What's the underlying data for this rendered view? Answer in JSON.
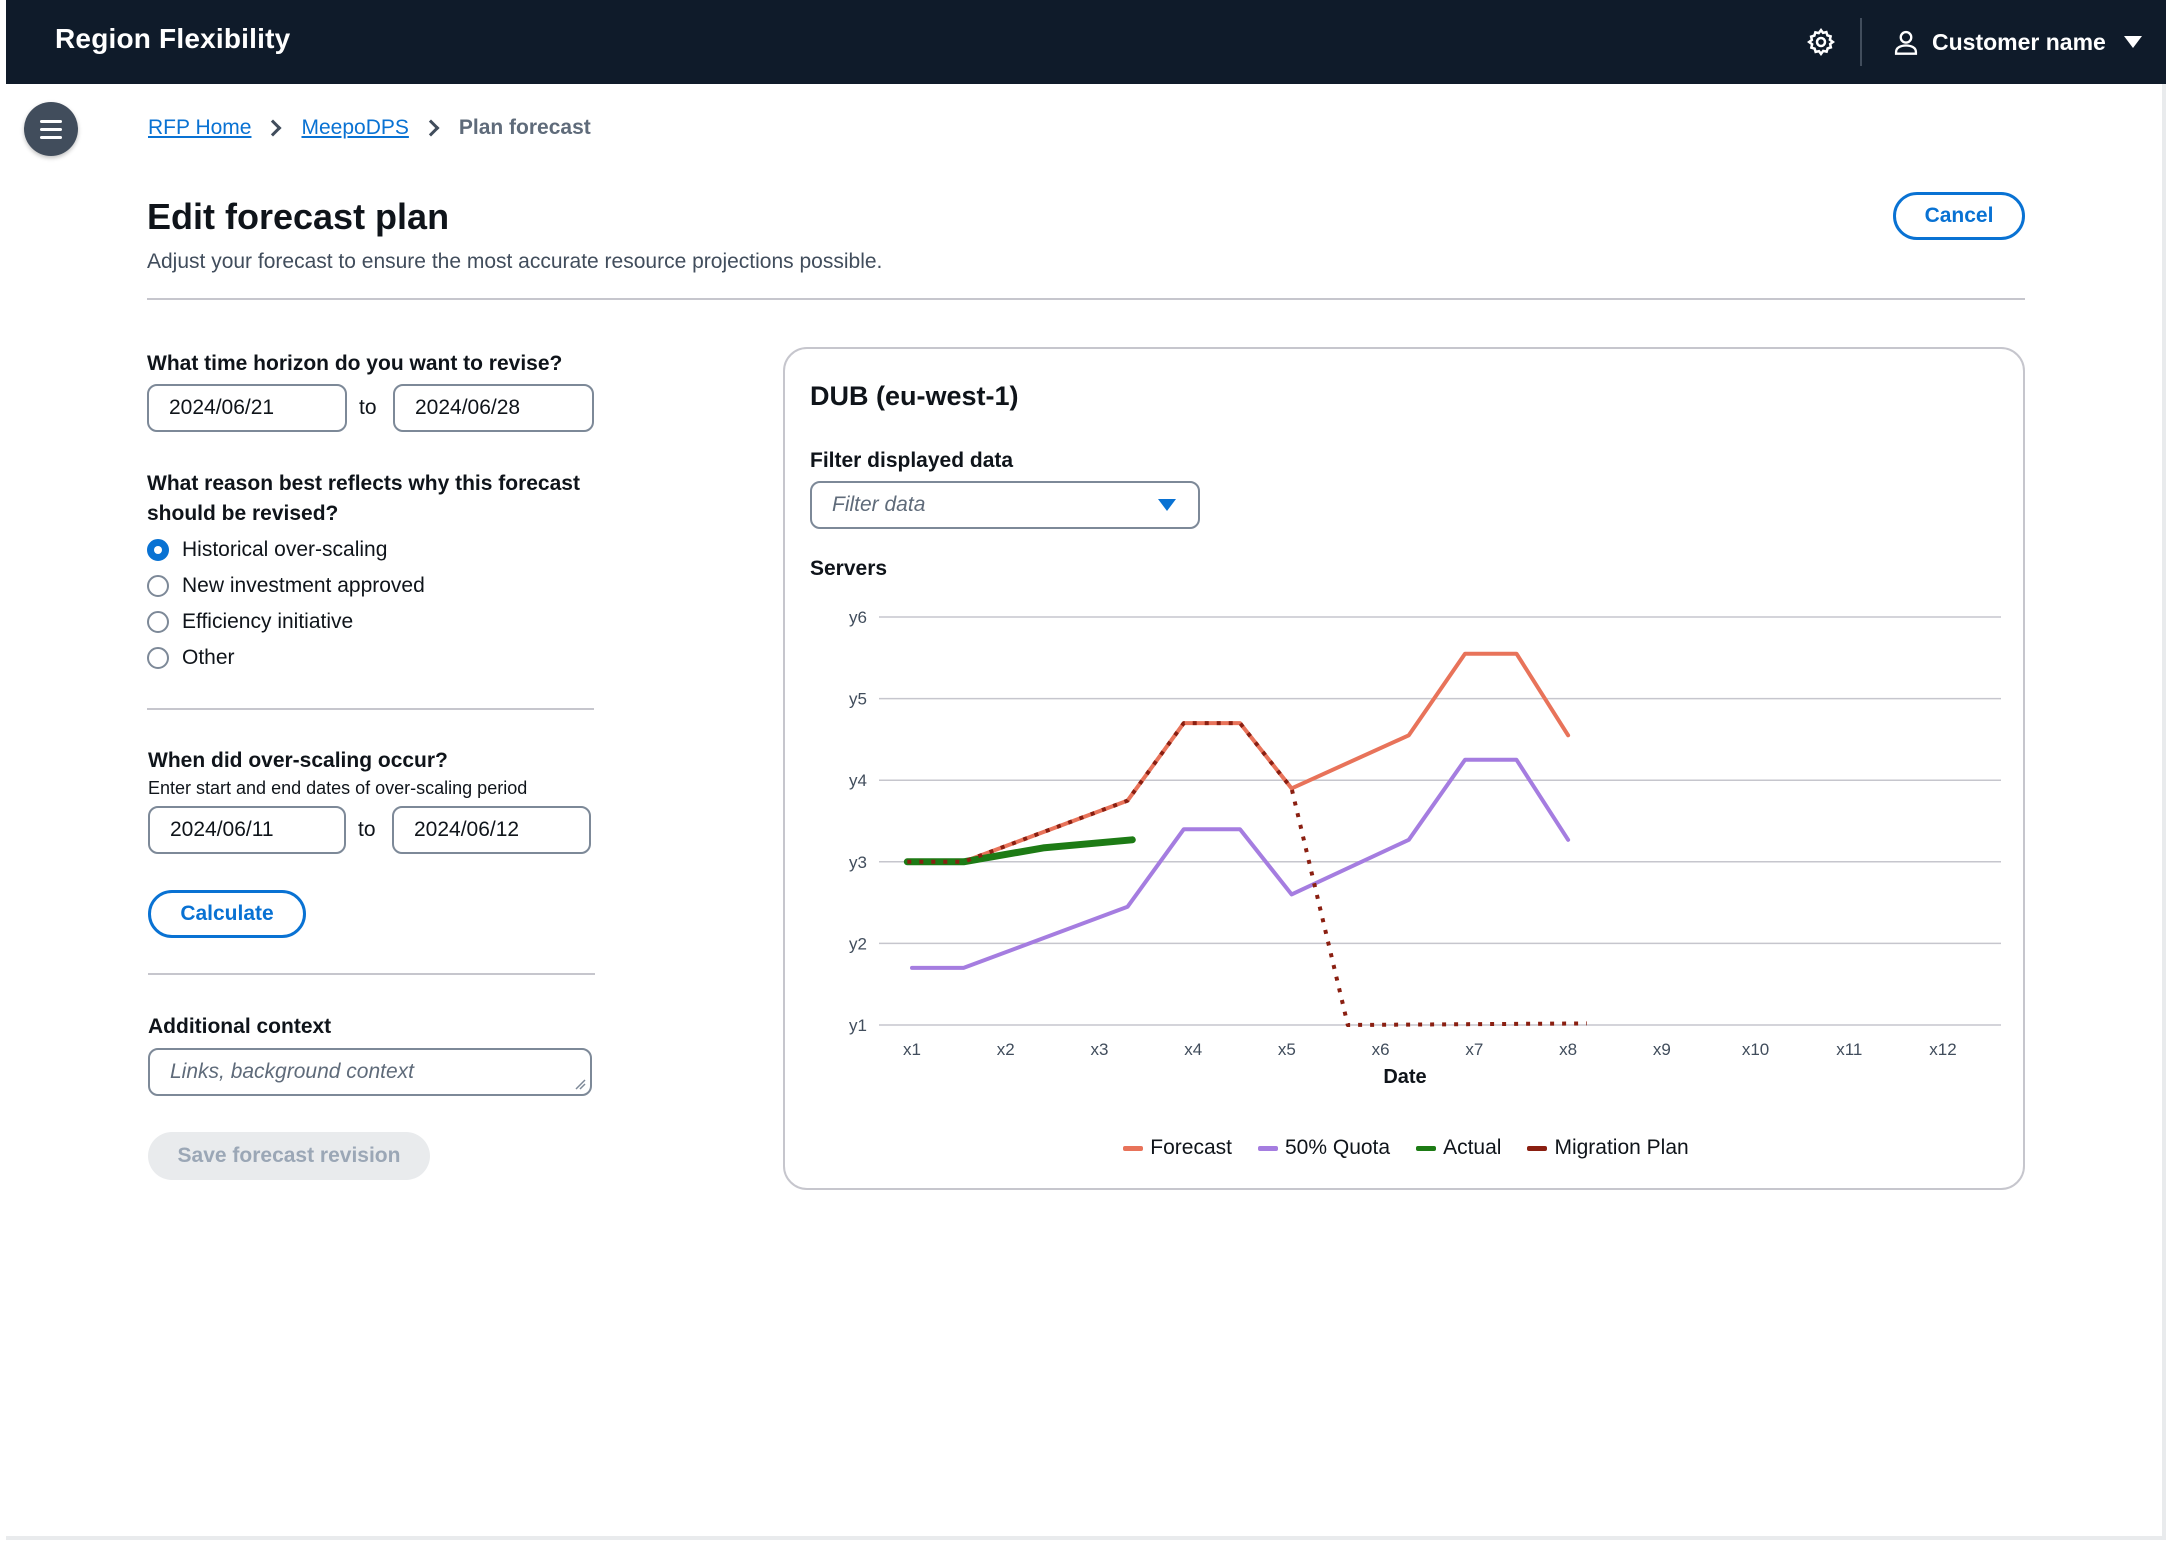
{
  "app": {
    "title": "Region Flexibility",
    "user_name": "Customer name"
  },
  "breadcrumb": {
    "home": "RFP Home",
    "service": "MeepoDPS",
    "current": "Plan forecast"
  },
  "header": {
    "title": "Edit forecast plan",
    "description": "Adjust your forecast to ensure the most accurate resource projections possible.",
    "cancel_label": "Cancel"
  },
  "form": {
    "horizon": {
      "label": "What time horizon do you want to revise?",
      "start": "2024/06/21",
      "to": "to",
      "end": "2024/06/28"
    },
    "reason": {
      "label_line1": "What reason best reflects why this forecast",
      "label_line2": "should be revised?",
      "options": [
        {
          "label": "Historical over-scaling",
          "checked": true
        },
        {
          "label": "New investment approved",
          "checked": false
        },
        {
          "label": "Efficiency initiative",
          "checked": false
        },
        {
          "label": "Other",
          "checked": false
        }
      ]
    },
    "overscaling": {
      "label": "When did over-scaling occur?",
      "hint": "Enter start and end dates of over-scaling period",
      "start": "2024/06/11",
      "to": "to",
      "end": "2024/06/12"
    },
    "calculate_label": "Calculate",
    "context": {
      "label": "Additional context",
      "placeholder": "Links, background context"
    },
    "save_label": "Save forecast revision"
  },
  "chart_panel": {
    "title": "DUB (eu-west-1)",
    "filter_label": "Filter displayed data",
    "filter_placeholder": "Filter data",
    "y_title": "Servers"
  },
  "chart_data": {
    "type": "line",
    "xlabel": "Date",
    "ylabel": "Servers",
    "x_ticks": [
      "x1",
      "x2",
      "x3",
      "x4",
      "x5",
      "x6",
      "x7",
      "x8",
      "x9",
      "x10",
      "x11",
      "x12"
    ],
    "y_ticks": [
      "y1",
      "y2",
      "y3",
      "y4",
      "y5",
      "y6"
    ],
    "xlim": [
      1,
      12
    ],
    "ylim": [
      1,
      6
    ],
    "grid": true,
    "legend_position": "bottom",
    "series": [
      {
        "name": "Forecast",
        "color": "#e8735a",
        "style": "solid",
        "points": [
          [
            1,
            3
          ],
          [
            1.55,
            3
          ],
          [
            3.3,
            3.75
          ],
          [
            3.9,
            4.7
          ],
          [
            4.5,
            4.7
          ],
          [
            5.05,
            3.9
          ],
          [
            6.3,
            4.55
          ],
          [
            6.9,
            5.55
          ],
          [
            7.45,
            5.55
          ],
          [
            8.0,
            4.55
          ]
        ]
      },
      {
        "name": "50% Quota",
        "color": "#a57de0",
        "style": "solid",
        "points": [
          [
            1,
            1.7
          ],
          [
            1.55,
            1.7
          ],
          [
            3.3,
            2.45
          ],
          [
            3.9,
            3.4
          ],
          [
            4.5,
            3.4
          ],
          [
            5.05,
            2.6
          ],
          [
            6.3,
            3.27
          ],
          [
            6.9,
            4.25
          ],
          [
            7.45,
            4.25
          ],
          [
            8.0,
            3.27
          ]
        ]
      },
      {
        "name": "Actual",
        "color": "#1d7b15",
        "style": "thick",
        "points": [
          [
            0.95,
            3
          ],
          [
            1.55,
            3
          ],
          [
            2.4,
            3.17
          ],
          [
            3.35,
            3.27
          ]
        ]
      },
      {
        "name": "Migration Plan",
        "color": "#8a1f11",
        "style": "dotted",
        "points": [
          [
            0.95,
            3
          ],
          [
            1.55,
            3
          ],
          [
            3.3,
            3.75
          ],
          [
            3.9,
            4.7
          ],
          [
            4.5,
            4.7
          ],
          [
            5.05,
            3.9
          ],
          [
            5.65,
            1.0
          ],
          [
            8.2,
            1.02
          ]
        ]
      }
    ]
  }
}
